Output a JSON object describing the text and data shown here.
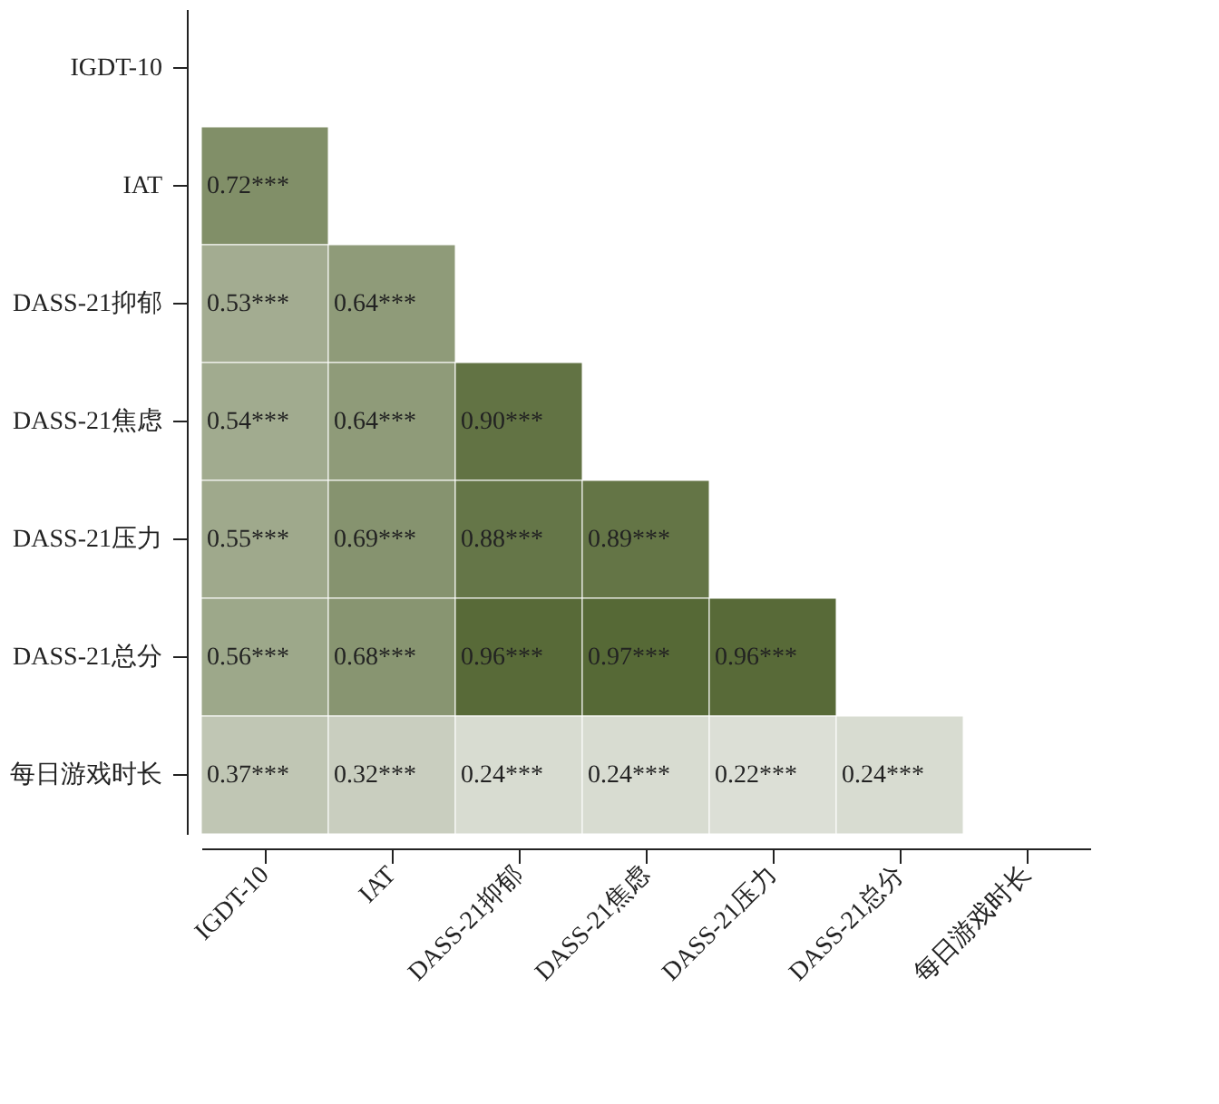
{
  "chart_data": {
    "type": "heatmap",
    "categories": [
      "IGDT-10",
      "IAT",
      "DASS-21抑郁",
      "DASS-21焦虑",
      "DASS-21压力",
      "DASS-21总分",
      "每日游戏时长"
    ],
    "y_categories": [
      "IGDT-10",
      "IAT",
      "DASS-21抑郁",
      "DASS-21焦虑",
      "DASS-21压力",
      "DASS-21总分",
      "每日游戏时长"
    ],
    "cells": [
      [
        null,
        null,
        null,
        null,
        null,
        null,
        null
      ],
      [
        0.72,
        null,
        null,
        null,
        null,
        null,
        null
      ],
      [
        0.53,
        0.64,
        null,
        null,
        null,
        null,
        null
      ],
      [
        0.54,
        0.64,
        0.9,
        null,
        null,
        null,
        null
      ],
      [
        0.55,
        0.69,
        0.88,
        0.89,
        null,
        null,
        null
      ],
      [
        0.56,
        0.68,
        0.96,
        0.97,
        0.96,
        null,
        null
      ],
      [
        0.37,
        0.32,
        0.24,
        0.24,
        0.22,
        0.24,
        null
      ]
    ],
    "cell_labels": [
      [
        null,
        null,
        null,
        null,
        null,
        null,
        null
      ],
      [
        "0.72***",
        null,
        null,
        null,
        null,
        null,
        null
      ],
      [
        "0.53***",
        "0.64***",
        null,
        null,
        null,
        null,
        null
      ],
      [
        "0.54***",
        "0.64***",
        "0.90***",
        null,
        null,
        null,
        null
      ],
      [
        "0.55***",
        "0.69***",
        "0.88***",
        "0.89***",
        null,
        null,
        null
      ],
      [
        "0.56***",
        "0.68***",
        "0.96***",
        "0.97***",
        "0.96***",
        null,
        null
      ],
      [
        "0.37***",
        "0.32***",
        "0.24***",
        "0.24***",
        "0.22***",
        "0.24***",
        null
      ]
    ]
  }
}
